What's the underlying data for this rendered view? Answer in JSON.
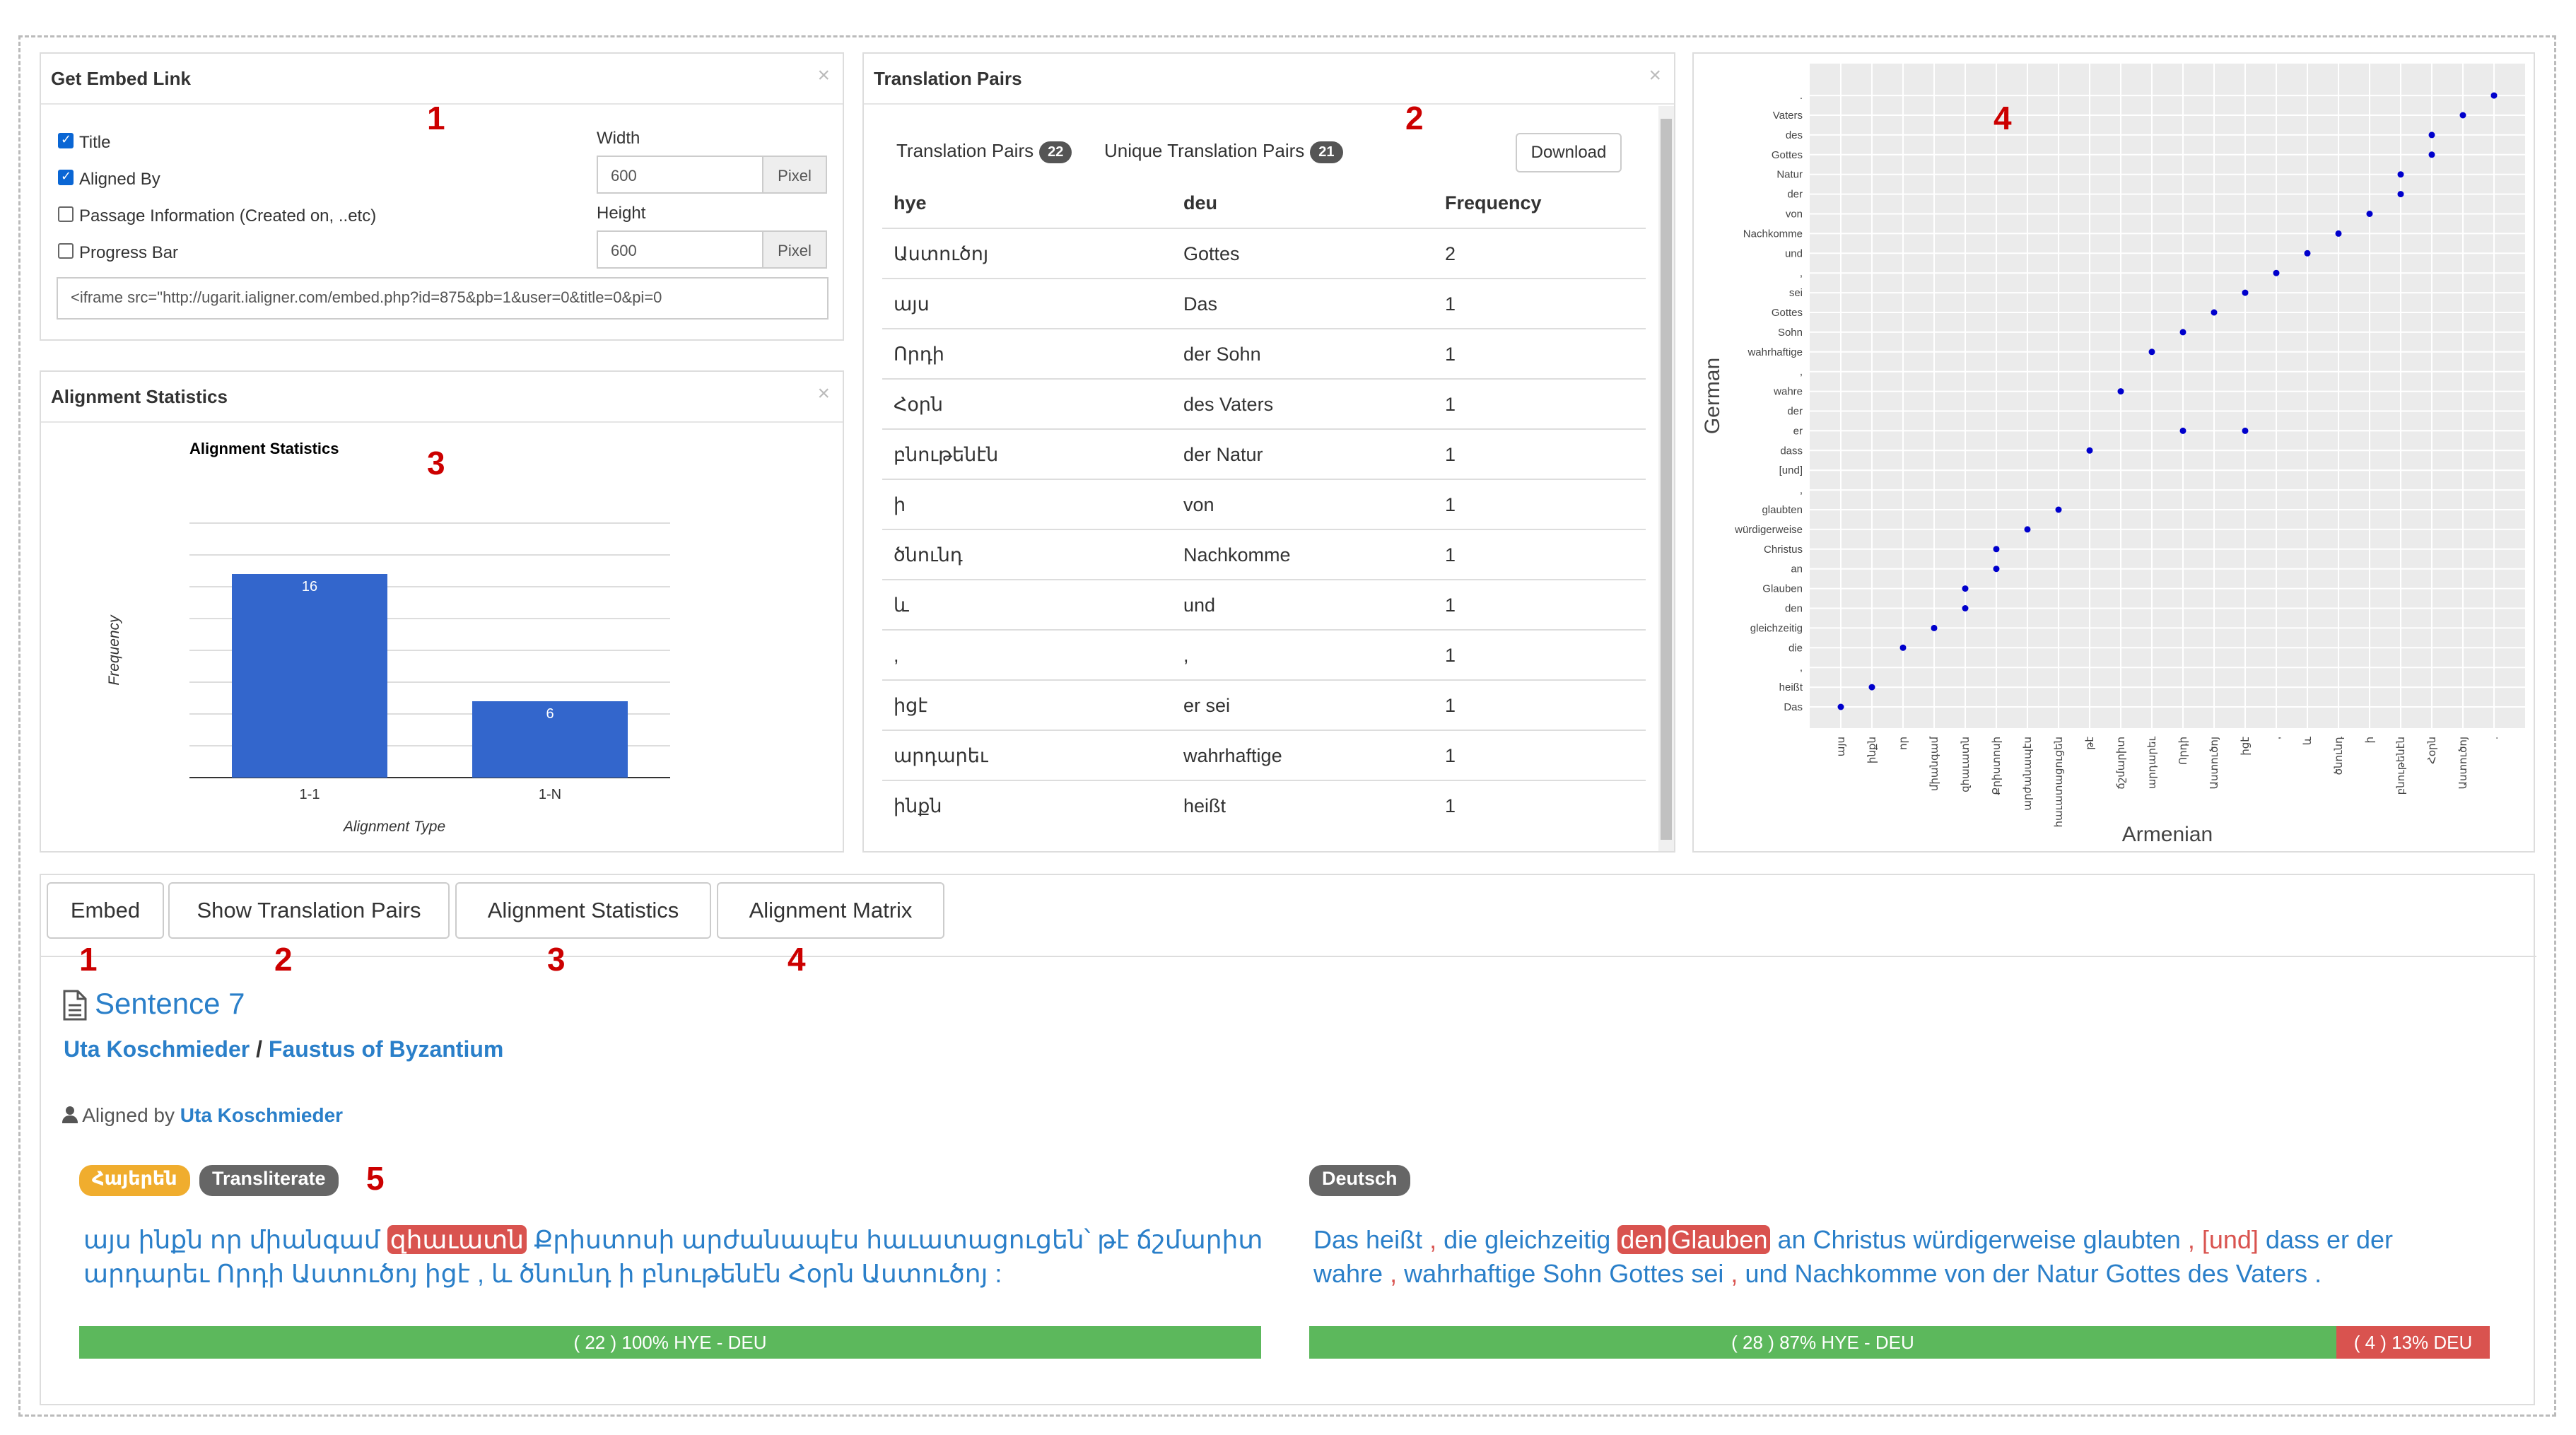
{
  "embed": {
    "title": "Get Embed Link",
    "options": [
      "Title",
      "Aligned By",
      "Passage Information (Created on, ..etc)",
      "Progress Bar"
    ],
    "checked": [
      true,
      true,
      false,
      false
    ],
    "width_label": "Width",
    "width_value": "600",
    "height_label": "Height",
    "height_value": "600",
    "unit": "Pixel",
    "code": "<iframe src=\"http://ugarit.ialigner.com/embed.php?id=875&pb=1&user=0&title=0&pi=0"
  },
  "stats": {
    "title": "Alignment Statistics"
  },
  "pairs": {
    "title": "Translation Pairs",
    "tab1_label": "Translation Pairs",
    "tab1_count": "22",
    "tab2_label": "Unique Translation Pairs",
    "tab2_count": "21",
    "download": "Download",
    "columns": [
      "hye",
      "deu",
      "Frequency"
    ],
    "rows": [
      [
        "Աստուծոյ",
        "Gottes",
        "2"
      ],
      [
        "այս",
        "Das",
        "1"
      ],
      [
        "Որդի",
        "der Sohn",
        "1"
      ],
      [
        "Հօրն",
        "des Vaters",
        "1"
      ],
      [
        "բնութենէն",
        "der Natur",
        "1"
      ],
      [
        "ի",
        "von",
        "1"
      ],
      [
        "ծնունդ",
        "Nachkomme",
        "1"
      ],
      [
        "և",
        "und",
        "1"
      ],
      [
        ",",
        ",",
        "1"
      ],
      [
        "իցէ",
        "er sei",
        "1"
      ],
      [
        "արդարեւ",
        "wahrhaftige",
        "1"
      ],
      [
        "ինքն",
        "heißt",
        "1"
      ]
    ]
  },
  "annotations": [
    "1",
    "2",
    "3",
    "4",
    "5"
  ],
  "tabs": [
    "Embed",
    "Show Translation Pairs",
    "Alignment Statistics",
    "Alignment Matrix"
  ],
  "sentence": {
    "title": "Sentence 7",
    "author": "Uta Koschmieder",
    "separator": "/",
    "work": "Faustus of Byzantium",
    "aligned_by_label": "Aligned by",
    "aligned_by": "Uta Koschmieder",
    "left_lang": "Հայերեն",
    "transliterate": "Transliterate",
    "right_lang": "Deutsch",
    "hye_pre": "այս ինքն որ միանգամ ",
    "hye_hl": "զհաւատն",
    "hye_post": " Քրիստոսի արժանապէս հաւատացուցեն՝ թէ ճշմարիտ",
    "hye_line2": "արդարեւ Որդի Աստուծոյ իցէ , և ծնունդ ի բնութենէն Հօրն Աստուծոյ :",
    "deu_pre": "Das heißt",
    "deu_c1": ",",
    "deu_mid": "die gleichzeitig",
    "deu_hl1": "den",
    "deu_hl2": "Glauben",
    "deu_post": "an Christus würdigerweise glaubten",
    "deu_c2": ",",
    "deu_und": "[und]",
    "deu_end": "dass er der",
    "deu_l2a": "wahre",
    "deu_c3": ",",
    "deu_l2b": "wahrhaftige Sohn Gottes sei",
    "deu_c4": ",",
    "deu_l2c": "und Nachkomme von der Natur Gottes des Vaters",
    "deu_dot": ".",
    "bar_left": "( 22 ) 100% HYE - DEU",
    "bar_right_main": "( 28 ) 87% HYE - DEU",
    "bar_right_rest": "( 4 ) 13% DEU",
    "bar_right_fraction": 0.87
  },
  "chart_data": [
    {
      "type": "bar",
      "title": "Alignment Statistics",
      "categories": [
        "1-1",
        "1-N"
      ],
      "values": [
        16,
        6
      ],
      "xlabel": "Alignment Type",
      "ylabel": "Frequency",
      "ylim": [
        0,
        20
      ],
      "color": "#3366cc"
    },
    {
      "type": "scatter",
      "xlabel": "Armenian",
      "ylabel": "German",
      "x_ticks": [
        "այս",
        "ինքն",
        "որ",
        "միանգամ",
        "զհաւատն",
        "Քրիստոսի",
        "արժանապէս",
        "հաւատացուցեն",
        "թէ",
        "ճշմարիտ",
        "արդարեւ",
        "Որդի",
        "Աստուծոյ",
        "իցէ",
        ",",
        "և",
        "ծնունդ",
        "ի",
        "բնութենէն",
        "Հօրն",
        "Աստուծոյ",
        "."
      ],
      "y_ticks": [
        "Das",
        "heißt",
        ",",
        "die",
        "gleichzeitig",
        "den",
        "Glauben",
        "an",
        "Christus",
        "würdigerweise",
        "glaubten",
        ",",
        "[und]",
        "dass",
        "er",
        "der",
        "wahre",
        ",",
        "wahrhaftige",
        "Sohn",
        "Gottes",
        "sei",
        ",",
        "und",
        "Nachkomme",
        "von",
        "der",
        "Natur",
        "Gottes",
        "des",
        "Vaters",
        "."
      ],
      "points": [
        [
          0,
          0
        ],
        [
          1,
          1
        ],
        [
          2,
          3
        ],
        [
          3,
          4
        ],
        [
          4,
          5
        ],
        [
          4,
          6
        ],
        [
          5,
          7
        ],
        [
          5,
          8
        ],
        [
          6,
          9
        ],
        [
          7,
          10
        ],
        [
          8,
          13
        ],
        [
          9,
          16
        ],
        [
          10,
          18
        ],
        [
          11,
          19
        ],
        [
          11,
          14
        ],
        [
          12,
          20
        ],
        [
          13,
          21
        ],
        [
          13,
          14
        ],
        [
          14,
          22
        ],
        [
          15,
          23
        ],
        [
          16,
          24
        ],
        [
          17,
          25
        ],
        [
          18,
          26
        ],
        [
          18,
          27
        ],
        [
          19,
          28
        ],
        [
          19,
          29
        ],
        [
          20,
          30
        ],
        [
          21,
          31
        ]
      ],
      "color": "#0000cc",
      "grid": true
    }
  ]
}
